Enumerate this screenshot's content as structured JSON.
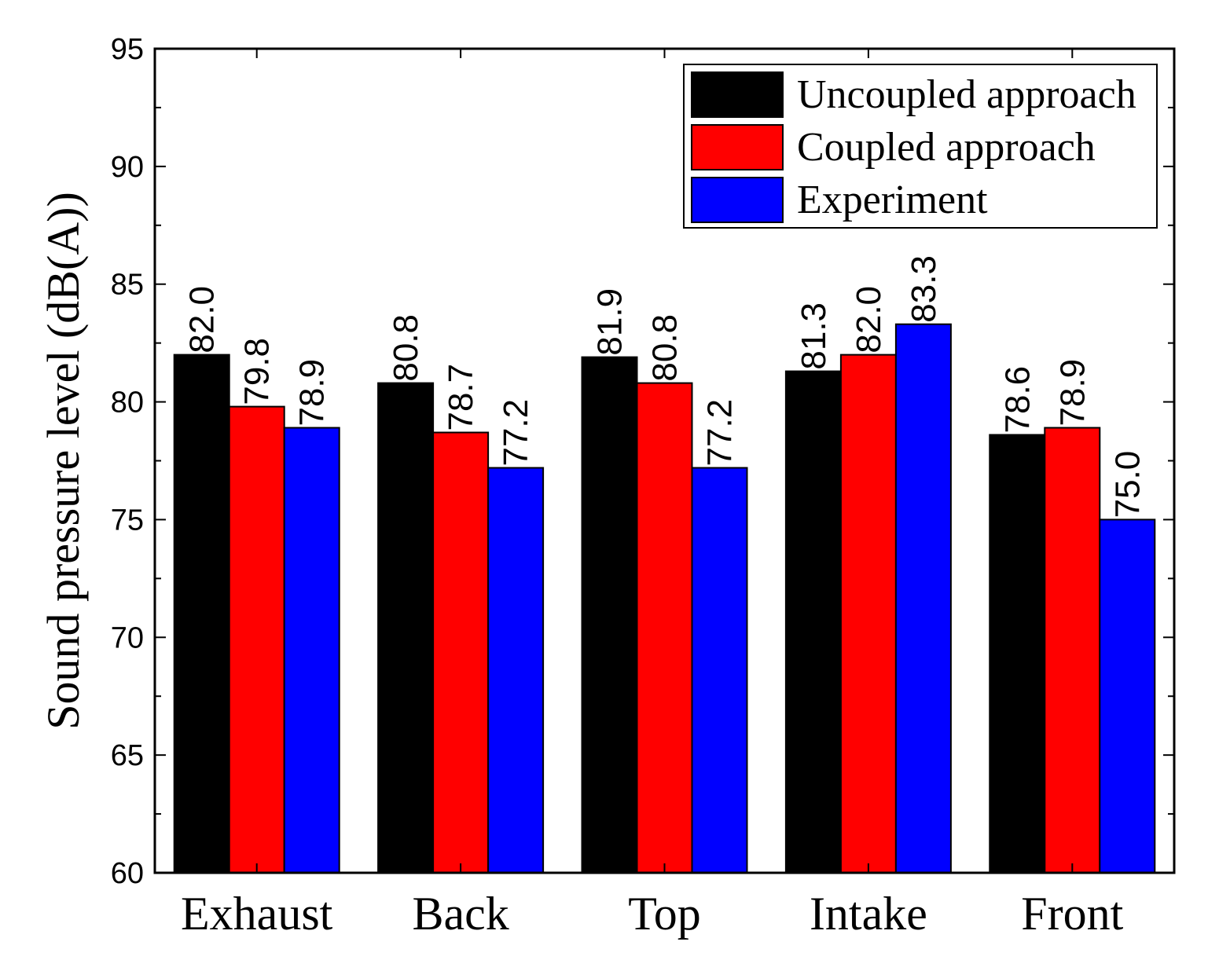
{
  "chart_data": {
    "type": "bar",
    "title": "",
    "xlabel": "",
    "ylabel": "Sound pressure level (dB(A))",
    "ylim": [
      60,
      95
    ],
    "yticks": [
      60,
      65,
      70,
      75,
      80,
      85,
      90,
      95
    ],
    "categories": [
      "Exhaust",
      "Back",
      "Top",
      "Intake",
      "Front"
    ],
    "legend_position": "top-right",
    "series": [
      {
        "name": "Uncoupled approach",
        "color": "#000000",
        "values": [
          82.0,
          80.8,
          81.9,
          81.3,
          78.6
        ],
        "labels": [
          "82.0",
          "80.8",
          "81.9",
          "81.3",
          "78.6"
        ]
      },
      {
        "name": "Coupled approach",
        "color": "#ff0000",
        "values": [
          79.8,
          78.7,
          80.8,
          82.0,
          78.9
        ],
        "labels": [
          "79.8",
          "78.7",
          "80.8",
          "82.0",
          "78.9"
        ]
      },
      {
        "name": "Experiment",
        "color": "#0000ff",
        "values": [
          78.9,
          77.2,
          77.2,
          83.3,
          75.0
        ],
        "labels": [
          "78.9",
          "77.2",
          "77.2",
          "83.3",
          "75.0"
        ]
      }
    ]
  }
}
